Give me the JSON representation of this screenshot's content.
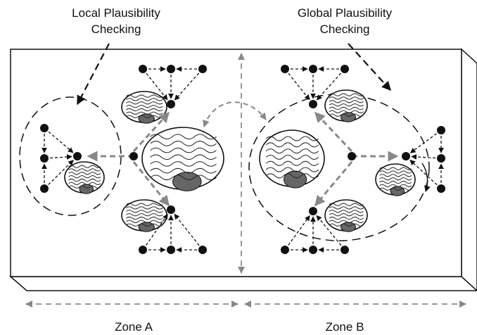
{
  "callouts": [
    {
      "lines": [
        "Local Plausibility",
        "Checking"
      ]
    },
    {
      "lines": [
        "Global Plausibility",
        "Checking"
      ]
    }
  ],
  "zones": [
    "Zone A",
    "Zone B"
  ]
}
